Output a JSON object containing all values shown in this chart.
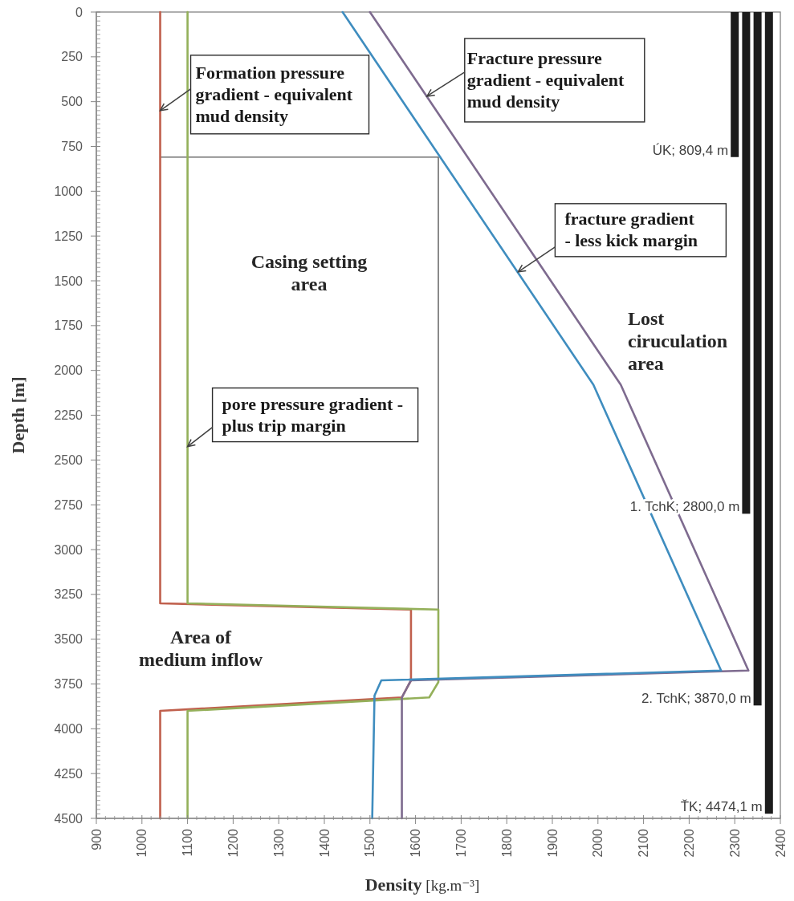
{
  "chart_data": {
    "type": "line",
    "xlabel": "Density [kg.m⁻³]",
    "ylabel": "Depth [m]",
    "xlim": [
      900,
      2400
    ],
    "ylim": [
      4500,
      0
    ],
    "xticks": [
      900,
      {
        "value": 920,
        "label": null
      },
      {
        "value": 940,
        "label": null
      },
      {
        "value": 960,
        "label": null
      },
      {
        "value": 980,
        "label": null
      },
      1000,
      {
        "value": 1020,
        "label": null
      },
      {
        "value": 1040,
        "label": null
      },
      {
        "value": 1060,
        "label": null
      },
      {
        "value": 1080,
        "label": null
      },
      1100,
      {
        "value": 1120,
        "label": null
      },
      {
        "value": 1140,
        "label": null
      },
      {
        "value": 1160,
        "label": null
      },
      {
        "value": 1180,
        "label": null
      },
      1200,
      {
        "value": 1220,
        "label": null
      },
      {
        "value": 1240,
        "label": null
      },
      {
        "value": 1260,
        "label": null
      },
      {
        "value": 1280,
        "label": null
      },
      1300,
      {
        "value": 1320,
        "label": null
      },
      {
        "value": 1340,
        "label": null
      },
      {
        "value": 1360,
        "label": null
      },
      {
        "value": 1380,
        "label": null
      },
      1400,
      {
        "value": 1420,
        "label": null
      },
      {
        "value": 1440,
        "label": null
      },
      {
        "value": 1460,
        "label": null
      },
      {
        "value": 1480,
        "label": null
      },
      1500,
      {
        "value": 1520,
        "label": null
      },
      {
        "value": 1540,
        "label": null
      },
      {
        "value": 1560,
        "label": null
      },
      {
        "value": 1580,
        "label": null
      },
      1600,
      {
        "value": 1620,
        "label": null
      },
      {
        "value": 1640,
        "label": null
      },
      {
        "value": 1660,
        "label": null
      },
      {
        "value": 1680,
        "label": null
      },
      1700,
      {
        "value": 1720,
        "label": null
      },
      {
        "value": 1740,
        "label": null
      },
      {
        "value": 1760,
        "label": null
      },
      {
        "value": 1780,
        "label": null
      },
      1800,
      {
        "value": 1820,
        "label": null
      },
      {
        "value": 1840,
        "label": null
      },
      {
        "value": 1860,
        "label": null
      },
      {
        "value": 1880,
        "label": null
      },
      1900,
      {
        "value": 1920,
        "label": null
      },
      {
        "value": 1940,
        "label": null
      },
      {
        "value": 1960,
        "label": null
      },
      {
        "value": 1980,
        "label": null
      },
      2000,
      {
        "value": 2020,
        "label": null
      },
      {
        "value": 2040,
        "label": null
      },
      {
        "value": 2060,
        "label": null
      },
      {
        "value": 2080,
        "label": null
      },
      2100,
      {
        "value": 2120,
        "label": null
      },
      {
        "value": 2140,
        "label": null
      },
      {
        "value": 2160,
        "label": null
      },
      {
        "value": 2180,
        "label": null
      },
      2200,
      {
        "value": 2220,
        "label": null
      },
      {
        "value": 2240,
        "label": null
      },
      {
        "value": 2260,
        "label": null
      },
      {
        "value": 2280,
        "label": null
      },
      2300,
      {
        "value": 2320,
        "label": null
      },
      {
        "value": 2340,
        "label": null
      },
      {
        "value": 2360,
        "label": null
      },
      {
        "value": 2380,
        "label": null
      },
      2400
    ],
    "yticks": [
      0,
      {
        "value": 25,
        "label": null
      },
      {
        "value": 50,
        "label": null
      },
      {
        "value": 75,
        "label": null
      },
      {
        "value": 100,
        "label": null
      },
      {
        "value": 125,
        "label": null
      },
      {
        "value": 150,
        "label": null
      },
      {
        "value": 175,
        "label": null
      },
      {
        "value": 200,
        "label": null
      },
      {
        "value": 225,
        "label": null
      },
      250,
      {
        "value": 275,
        "label": null
      },
      {
        "value": 300,
        "label": null
      },
      {
        "value": 325,
        "label": null
      },
      {
        "value": 350,
        "label": null
      },
      {
        "value": 375,
        "label": null
      },
      {
        "value": 400,
        "label": null
      },
      {
        "value": 425,
        "label": null
      },
      {
        "value": 450,
        "label": null
      },
      {
        "value": 475,
        "label": null
      },
      500,
      {
        "value": 525,
        "label": null
      },
      {
        "value": 550,
        "label": null
      },
      {
        "value": 575,
        "label": null
      },
      {
        "value": 600,
        "label": null
      },
      {
        "value": 625,
        "label": null
      },
      {
        "value": 650,
        "label": null
      },
      {
        "value": 675,
        "label": null
      },
      {
        "value": 700,
        "label": null
      },
      {
        "value": 725,
        "label": null
      },
      750,
      {
        "value": 775,
        "label": null
      },
      {
        "value": 800,
        "label": null
      },
      {
        "value": 825,
        "label": null
      },
      {
        "value": 850,
        "label": null
      },
      {
        "value": 875,
        "label": null
      },
      {
        "value": 900,
        "label": null
      },
      {
        "value": 925,
        "label": null
      },
      {
        "value": 950,
        "label": null
      },
      {
        "value": 975,
        "label": null
      },
      1000,
      {
        "value": 1025,
        "label": null
      },
      {
        "value": 1050,
        "label": null
      },
      {
        "value": 1075,
        "label": null
      },
      {
        "value": 1100,
        "label": null
      },
      {
        "value": 1125,
        "label": null
      },
      {
        "value": 1150,
        "label": null
      },
      {
        "value": 1175,
        "label": null
      },
      {
        "value": 1200,
        "label": null
      },
      {
        "value": 1225,
        "label": null
      },
      1250,
      {
        "value": 1275,
        "label": null
      },
      {
        "value": 1300,
        "label": null
      },
      {
        "value": 1325,
        "label": null
      },
      {
        "value": 1350,
        "label": null
      },
      {
        "value": 1375,
        "label": null
      },
      {
        "value": 1400,
        "label": null
      },
      {
        "value": 1425,
        "label": null
      },
      {
        "value": 1450,
        "label": null
      },
      {
        "value": 1475,
        "label": null
      },
      1500,
      {
        "value": 1525,
        "label": null
      },
      {
        "value": 1550,
        "label": null
      },
      {
        "value": 1575,
        "label": null
      },
      {
        "value": 1600,
        "label": null
      },
      {
        "value": 1625,
        "label": null
      },
      {
        "value": 1650,
        "label": null
      },
      {
        "value": 1675,
        "label": null
      },
      {
        "value": 1700,
        "label": null
      },
      {
        "value": 1725,
        "label": null
      },
      1750,
      {
        "value": 1775,
        "label": null
      },
      {
        "value": 1800,
        "label": null
      },
      {
        "value": 1825,
        "label": null
      },
      {
        "value": 1850,
        "label": null
      },
      {
        "value": 1875,
        "label": null
      },
      {
        "value": 1900,
        "label": null
      },
      {
        "value": 1925,
        "label": null
      },
      {
        "value": 1950,
        "label": null
      },
      {
        "value": 1975,
        "label": null
      },
      2000,
      {
        "value": 2025,
        "label": null
      },
      {
        "value": 2050,
        "label": null
      },
      {
        "value": 2075,
        "label": null
      },
      {
        "value": 2100,
        "label": null
      },
      {
        "value": 2125,
        "label": null
      },
      {
        "value": 2150,
        "label": null
      },
      {
        "value": 2175,
        "label": null
      },
      {
        "value": 2200,
        "label": null
      },
      {
        "value": 2225,
        "label": null
      },
      2250,
      {
        "value": 2275,
        "label": null
      },
      {
        "value": 2300,
        "label": null
      },
      {
        "value": 2325,
        "label": null
      },
      {
        "value": 2350,
        "label": null
      },
      {
        "value": 2375,
        "label": null
      },
      {
        "value": 2400,
        "label": null
      },
      {
        "value": 2425,
        "label": null
      },
      {
        "value": 2450,
        "label": null
      },
      {
        "value": 2475,
        "label": null
      },
      2500,
      {
        "value": 2525,
        "label": null
      },
      {
        "value": 2550,
        "label": null
      },
      {
        "value": 2575,
        "label": null
      },
      {
        "value": 2600,
        "label": null
      },
      {
        "value": 2625,
        "label": null
      },
      {
        "value": 2650,
        "label": null
      },
      {
        "value": 2675,
        "label": null
      },
      {
        "value": 2700,
        "label": null
      },
      {
        "value": 2725,
        "label": null
      },
      2750,
      {
        "value": 2775,
        "label": null
      },
      {
        "value": 2800,
        "label": null
      },
      {
        "value": 2825,
        "label": null
      },
      {
        "value": 2850,
        "label": null
      },
      {
        "value": 2875,
        "label": null
      },
      {
        "value": 2900,
        "label": null
      },
      {
        "value": 2925,
        "label": null
      },
      {
        "value": 2950,
        "label": null
      },
      {
        "value": 2975,
        "label": null
      },
      3000,
      {
        "value": 3025,
        "label": null
      },
      {
        "value": 3050,
        "label": null
      },
      {
        "value": 3075,
        "label": null
      },
      {
        "value": 3100,
        "label": null
      },
      {
        "value": 3125,
        "label": null
      },
      {
        "value": 3150,
        "label": null
      },
      {
        "value": 3175,
        "label": null
      },
      {
        "value": 3200,
        "label": null
      },
      {
        "value": 3225,
        "label": null
      },
      3250,
      {
        "value": 3275,
        "label": null
      },
      {
        "value": 3300,
        "label": null
      },
      {
        "value": 3325,
        "label": null
      },
      {
        "value": 3350,
        "label": null
      },
      {
        "value": 3375,
        "label": null
      },
      {
        "value": 3400,
        "label": null
      },
      {
        "value": 3425,
        "label": null
      },
      {
        "value": 3450,
        "label": null
      },
      {
        "value": 3475,
        "label": null
      },
      3500,
      {
        "value": 3525,
        "label": null
      },
      {
        "value": 3550,
        "label": null
      },
      {
        "value": 3575,
        "label": null
      },
      {
        "value": 3600,
        "label": null
      },
      {
        "value": 3625,
        "label": null
      },
      {
        "value": 3650,
        "label": null
      },
      {
        "value": 3675,
        "label": null
      },
      {
        "value": 3700,
        "label": null
      },
      {
        "value": 3725,
        "label": null
      },
      3750,
      {
        "value": 3775,
        "label": null
      },
      {
        "value": 3800,
        "label": null
      },
      {
        "value": 3825,
        "label": null
      },
      {
        "value": 3850,
        "label": null
      },
      {
        "value": 3875,
        "label": null
      },
      {
        "value": 3900,
        "label": null
      },
      {
        "value": 3925,
        "label": null
      },
      {
        "value": 3950,
        "label": null
      },
      {
        "value": 3975,
        "label": null
      },
      4000,
      {
        "value": 4025,
        "label": null
      },
      {
        "value": 4050,
        "label": null
      },
      {
        "value": 4075,
        "label": null
      },
      {
        "value": 4100,
        "label": null
      },
      {
        "value": 4125,
        "label": null
      },
      {
        "value": 4150,
        "label": null
      },
      {
        "value": 4175,
        "label": null
      },
      {
        "value": 4200,
        "label": null
      },
      {
        "value": 4225,
        "label": null
      },
      4250,
      {
        "value": 4275,
        "label": null
      },
      {
        "value": 4300,
        "label": null
      },
      {
        "value": 4325,
        "label": null
      },
      {
        "value": 4350,
        "label": null
      },
      {
        "value": 4375,
        "label": null
      },
      {
        "value": 4400,
        "label": null
      },
      {
        "value": 4425,
        "label": null
      },
      {
        "value": 4450,
        "label": null
      },
      {
        "value": 4475,
        "label": null
      },
      4500
    ],
    "series": [
      {
        "color": "#595959",
        "x": [
          1040,
          1650,
          1650
        ],
        "values": [
          810,
          810,
          3335
        ]
      },
      {
        "color": "#c0604d",
        "x": [
          1040,
          1040,
          1590,
          1590,
          1570,
          1040,
          1040
        ],
        "values": [
          0,
          3300,
          3335,
          3730,
          3825,
          3900,
          4500
        ]
      },
      {
        "color": "#94b05a",
        "x": [
          1100,
          1100,
          1650,
          1650,
          1630,
          1100,
          1100
        ],
        "values": [
          0,
          3300,
          3335,
          3740,
          3825,
          3900,
          4500
        ]
      },
      {
        "color": "#7e6b8f",
        "x": [
          1500,
          2050,
          2330,
          1590,
          1570,
          1570
        ],
        "values": [
          0,
          2080,
          3675,
          3730,
          3825,
          4500
        ]
      },
      {
        "color": "#3f8dbf",
        "x": [
          1440,
          1990,
          2270,
          1525,
          1510,
          1505
        ],
        "values": [
          0,
          2080,
          3675,
          3730,
          3815,
          4500
        ]
      },
      {
        "type": "bar",
        "color": "#1c1c1c",
        "x": [
          2300,
          2325,
          2350,
          2375
        ],
        "values": [
          809.4,
          2800,
          3870,
          4474.1
        ]
      }
    ],
    "annotations": [
      {
        "text": "Formation pressure\ngradient - equivalent\nmud density",
        "x": 1040,
        "y": 550
      },
      {
        "text": "Fracture pressure\ngradient - equivalent\nmud density",
        "x": 1625,
        "y": 470
      },
      {
        "text": "fracture gradient\n- less kick margin",
        "x": 1825,
        "y": 1450
      },
      {
        "text": "pore pressure gradient -\nplus trip margin",
        "x": 1100,
        "y": 2425
      },
      "Casing setting\narea",
      "Area of\nmedium inflow",
      "Lost\nciruculation\narea",
      {
        "text": "ÚK; 809,4 m",
        "x": 2300,
        "y": 809.4
      },
      {
        "text": "1. TchK; 2800,0 m",
        "x": 2325,
        "y": 2800
      },
      {
        "text": "2. TchK; 3870,0 m",
        "x": 2350,
        "y": 3870
      },
      {
        "text": "ŤK; 4474,1 m",
        "x": 2375,
        "y": 4474.1
      }
    ]
  }
}
